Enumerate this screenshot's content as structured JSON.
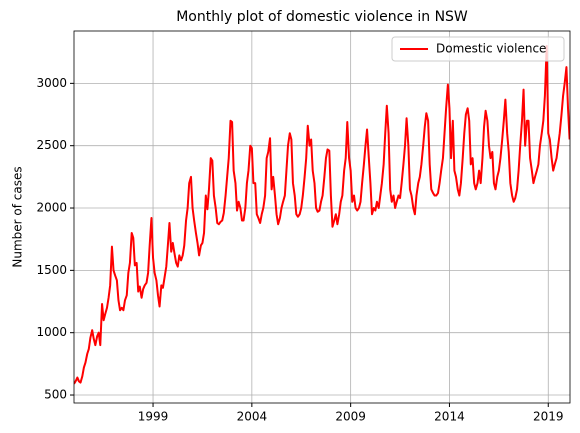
{
  "chart_data": {
    "type": "line",
    "title": "Monthly plot of domestic violence in NSW",
    "ylabel": "Number of cases",
    "x": [
      1995,
      1995.08,
      1995.17,
      1995.25,
      1995.33,
      1995.42,
      1995.5,
      1995.58,
      1995.67,
      1995.75,
      1995.83,
      1995.92,
      1996,
      1996.08,
      1996.17,
      1996.25,
      1996.33,
      1996.42,
      1996.5,
      1996.58,
      1996.67,
      1996.75,
      1996.83,
      1996.92,
      1997,
      1997.08,
      1997.17,
      1997.25,
      1997.33,
      1997.42,
      1997.5,
      1997.58,
      1997.67,
      1997.75,
      1997.83,
      1997.92,
      1998,
      1998.08,
      1998.17,
      1998.25,
      1998.33,
      1998.42,
      1998.5,
      1998.58,
      1998.67,
      1998.75,
      1998.83,
      1998.92,
      1999,
      1999.08,
      1999.17,
      1999.25,
      1999.33,
      1999.42,
      1999.5,
      1999.58,
      1999.67,
      1999.75,
      1999.83,
      1999.92,
      2000,
      2000.08,
      2000.17,
      2000.25,
      2000.33,
      2000.42,
      2000.5,
      2000.58,
      2000.67,
      2000.75,
      2000.83,
      2000.92,
      2001,
      2001.08,
      2001.17,
      2001.25,
      2001.33,
      2001.42,
      2001.5,
      2001.58,
      2001.67,
      2001.75,
      2001.83,
      2001.92,
      2002,
      2002.08,
      2002.17,
      2002.25,
      2002.33,
      2002.42,
      2002.5,
      2002.58,
      2002.67,
      2002.75,
      2002.83,
      2002.92,
      2003,
      2003.08,
      2003.17,
      2003.25,
      2003.33,
      2003.42,
      2003.5,
      2003.58,
      2003.67,
      2003.75,
      2003.83,
      2003.92,
      2004,
      2004.08,
      2004.17,
      2004.25,
      2004.33,
      2004.42,
      2004.5,
      2004.58,
      2004.67,
      2004.75,
      2004.83,
      2004.92,
      2005,
      2005.08,
      2005.17,
      2005.25,
      2005.33,
      2005.42,
      2005.5,
      2005.58,
      2005.67,
      2005.75,
      2005.83,
      2005.92,
      2006,
      2006.08,
      2006.17,
      2006.25,
      2006.33,
      2006.42,
      2006.5,
      2006.58,
      2006.67,
      2006.75,
      2006.83,
      2006.92,
      2007,
      2007.08,
      2007.17,
      2007.25,
      2007.33,
      2007.42,
      2007.5,
      2007.58,
      2007.67,
      2007.75,
      2007.83,
      2007.92,
      2008,
      2008.08,
      2008.17,
      2008.25,
      2008.33,
      2008.42,
      2008.5,
      2008.58,
      2008.67,
      2008.75,
      2008.83,
      2008.92,
      2009,
      2009.08,
      2009.17,
      2009.25,
      2009.33,
      2009.42,
      2009.5,
      2009.58,
      2009.67,
      2009.75,
      2009.83,
      2009.92,
      2010,
      2010.08,
      2010.17,
      2010.25,
      2010.33,
      2010.42,
      2010.5,
      2010.58,
      2010.67,
      2010.75,
      2010.83,
      2010.92,
      2011,
      2011.08,
      2011.17,
      2011.25,
      2011.33,
      2011.42,
      2011.5,
      2011.58,
      2011.67,
      2011.75,
      2011.83,
      2011.92,
      2012,
      2012.08,
      2012.17,
      2012.25,
      2012.33,
      2012.42,
      2012.5,
      2012.58,
      2012.67,
      2012.75,
      2012.83,
      2012.92,
      2013,
      2013.08,
      2013.17,
      2013.25,
      2013.33,
      2013.42,
      2013.5,
      2013.58,
      2013.67,
      2013.75,
      2013.83,
      2013.92,
      2014,
      2014.08,
      2014.17,
      2014.25,
      2014.33,
      2014.42,
      2014.5,
      2014.58,
      2014.67,
      2014.75,
      2014.83,
      2014.92,
      2015,
      2015.08,
      2015.17,
      2015.25,
      2015.33,
      2015.42,
      2015.5,
      2015.58,
      2015.67,
      2015.75,
      2015.83,
      2015.92,
      2016,
      2016.08,
      2016.17,
      2016.25,
      2016.33,
      2016.42,
      2016.5,
      2016.58,
      2016.67,
      2016.75,
      2016.83,
      2016.92,
      2017,
      2017.08,
      2017.17,
      2017.25,
      2017.33,
      2017.42,
      2017.5,
      2017.58,
      2017.67,
      2017.75,
      2017.83,
      2017.92,
      2018,
      2018.08,
      2018.17,
      2018.25,
      2018.33,
      2018.42,
      2018.5,
      2018.58,
      2018.67,
      2018.75,
      2018.83,
      2018.92,
      2019,
      2019.08,
      2019.17,
      2019.25,
      2019.33,
      2019.42,
      2019.5,
      2019.58,
      2019.67,
      2019.75,
      2019.83,
      2019.92,
      2020,
      2020.08
    ],
    "series": [
      {
        "name": "Domestic violence",
        "color": "#ff0000",
        "values": [
          590,
          610,
          640,
          610,
          600,
          650,
          720,
          760,
          830,
          870,
          960,
          1020,
          950,
          900,
          970,
          1000,
          900,
          1230,
          1100,
          1150,
          1200,
          1280,
          1380,
          1690,
          1500,
          1460,
          1420,
          1260,
          1180,
          1200,
          1180,
          1260,
          1300,
          1480,
          1560,
          1800,
          1760,
          1540,
          1560,
          1330,
          1370,
          1280,
          1350,
          1380,
          1400,
          1480,
          1700,
          1920,
          1600,
          1480,
          1420,
          1300,
          1210,
          1380,
          1360,
          1440,
          1530,
          1700,
          1880,
          1650,
          1720,
          1640,
          1560,
          1530,
          1620,
          1580,
          1620,
          1700,
          1900,
          2000,
          2200,
          2250,
          2000,
          1900,
          1800,
          1720,
          1620,
          1700,
          1720,
          1800,
          2100,
          1990,
          2150,
          2400,
          2380,
          2100,
          2000,
          1880,
          1870,
          1890,
          1900,
          1960,
          2100,
          2250,
          2400,
          2700,
          2690,
          2300,
          2200,
          1980,
          2050,
          2000,
          1900,
          1900,
          2000,
          2200,
          2300,
          2500,
          2480,
          2200,
          2200,
          1950,
          1920,
          1880,
          1950,
          2000,
          2100,
          2400,
          2450,
          2560,
          2150,
          2250,
          2100,
          1950,
          1870,
          1920,
          2000,
          2050,
          2100,
          2300,
          2500,
          2600,
          2550,
          2200,
          2100,
          1950,
          1930,
          1950,
          2000,
          2100,
          2250,
          2400,
          2660,
          2500,
          2550,
          2300,
          2200,
          2000,
          1970,
          1980,
          2050,
          2100,
          2250,
          2400,
          2470,
          2460,
          2100,
          1850,
          1900,
          1950,
          1870,
          1950,
          2050,
          2100,
          2300,
          2400,
          2690,
          2400,
          2300,
          2050,
          2100,
          2000,
          1980,
          2000,
          2050,
          2200,
          2350,
          2500,
          2630,
          2400,
          2200,
          1950,
          2000,
          1980,
          2050,
          2000,
          2100,
          2200,
          2350,
          2600,
          2820,
          2600,
          2150,
          2050,
          2100,
          2000,
          2050,
          2100,
          2080,
          2200,
          2350,
          2500,
          2720,
          2500,
          2150,
          2100,
          2000,
          1950,
          2100,
          2200,
          2250,
          2350,
          2500,
          2650,
          2760,
          2700,
          2350,
          2150,
          2120,
          2100,
          2100,
          2120,
          2200,
          2300,
          2400,
          2600,
          2800,
          2990,
          2800,
          2400,
          2700,
          2300,
          2250,
          2150,
          2100,
          2200,
          2400,
          2600,
          2750,
          2800,
          2700,
          2350,
          2400,
          2200,
          2150,
          2200,
          2300,
          2200,
          2400,
          2650,
          2780,
          2700,
          2500,
          2400,
          2450,
          2200,
          2150,
          2250,
          2300,
          2400,
          2550,
          2700,
          2870,
          2600,
          2450,
          2200,
          2100,
          2050,
          2080,
          2150,
          2300,
          2500,
          2700,
          2950,
          2500,
          2700,
          2700,
          2400,
          2300,
          2200,
          2250,
          2300,
          2350,
          2500,
          2600,
          2700,
          2900,
          3300,
          2600,
          2550,
          2400,
          2300,
          2350,
          2400,
          2500,
          2600,
          2750,
          2900,
          3000,
          3130,
          2800,
          2550
        ]
      }
    ],
    "xlim": [
      1995,
      2020.1
    ],
    "xticks": [
      1999,
      2004,
      2009,
      2014,
      2019
    ],
    "ylim": [
      436,
      3420
    ],
    "yticks": [
      500,
      1000,
      1500,
      2000,
      2500,
      3000
    ],
    "grid": true,
    "legend": "upper right"
  }
}
